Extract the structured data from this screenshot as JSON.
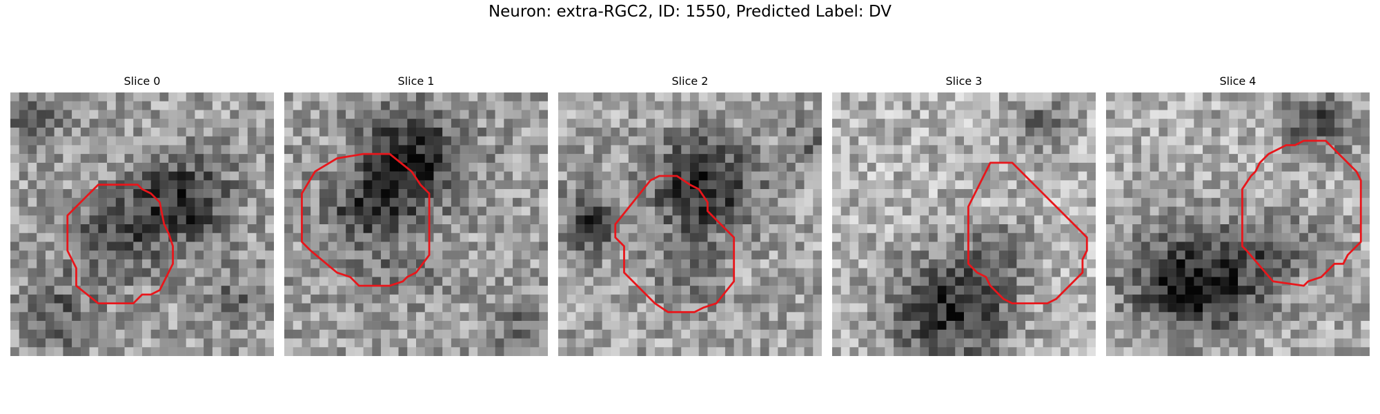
{
  "figure": {
    "title": "Neuron: extra-RGC2, ID: 1550, Predicted Label: DV",
    "contour_color": "#e8161b",
    "panels": [
      {
        "label": "Slice 0"
      },
      {
        "label": "Slice 1"
      },
      {
        "label": "Slice 2"
      },
      {
        "label": "Slice 3"
      },
      {
        "label": "Slice 4"
      }
    ]
  }
}
